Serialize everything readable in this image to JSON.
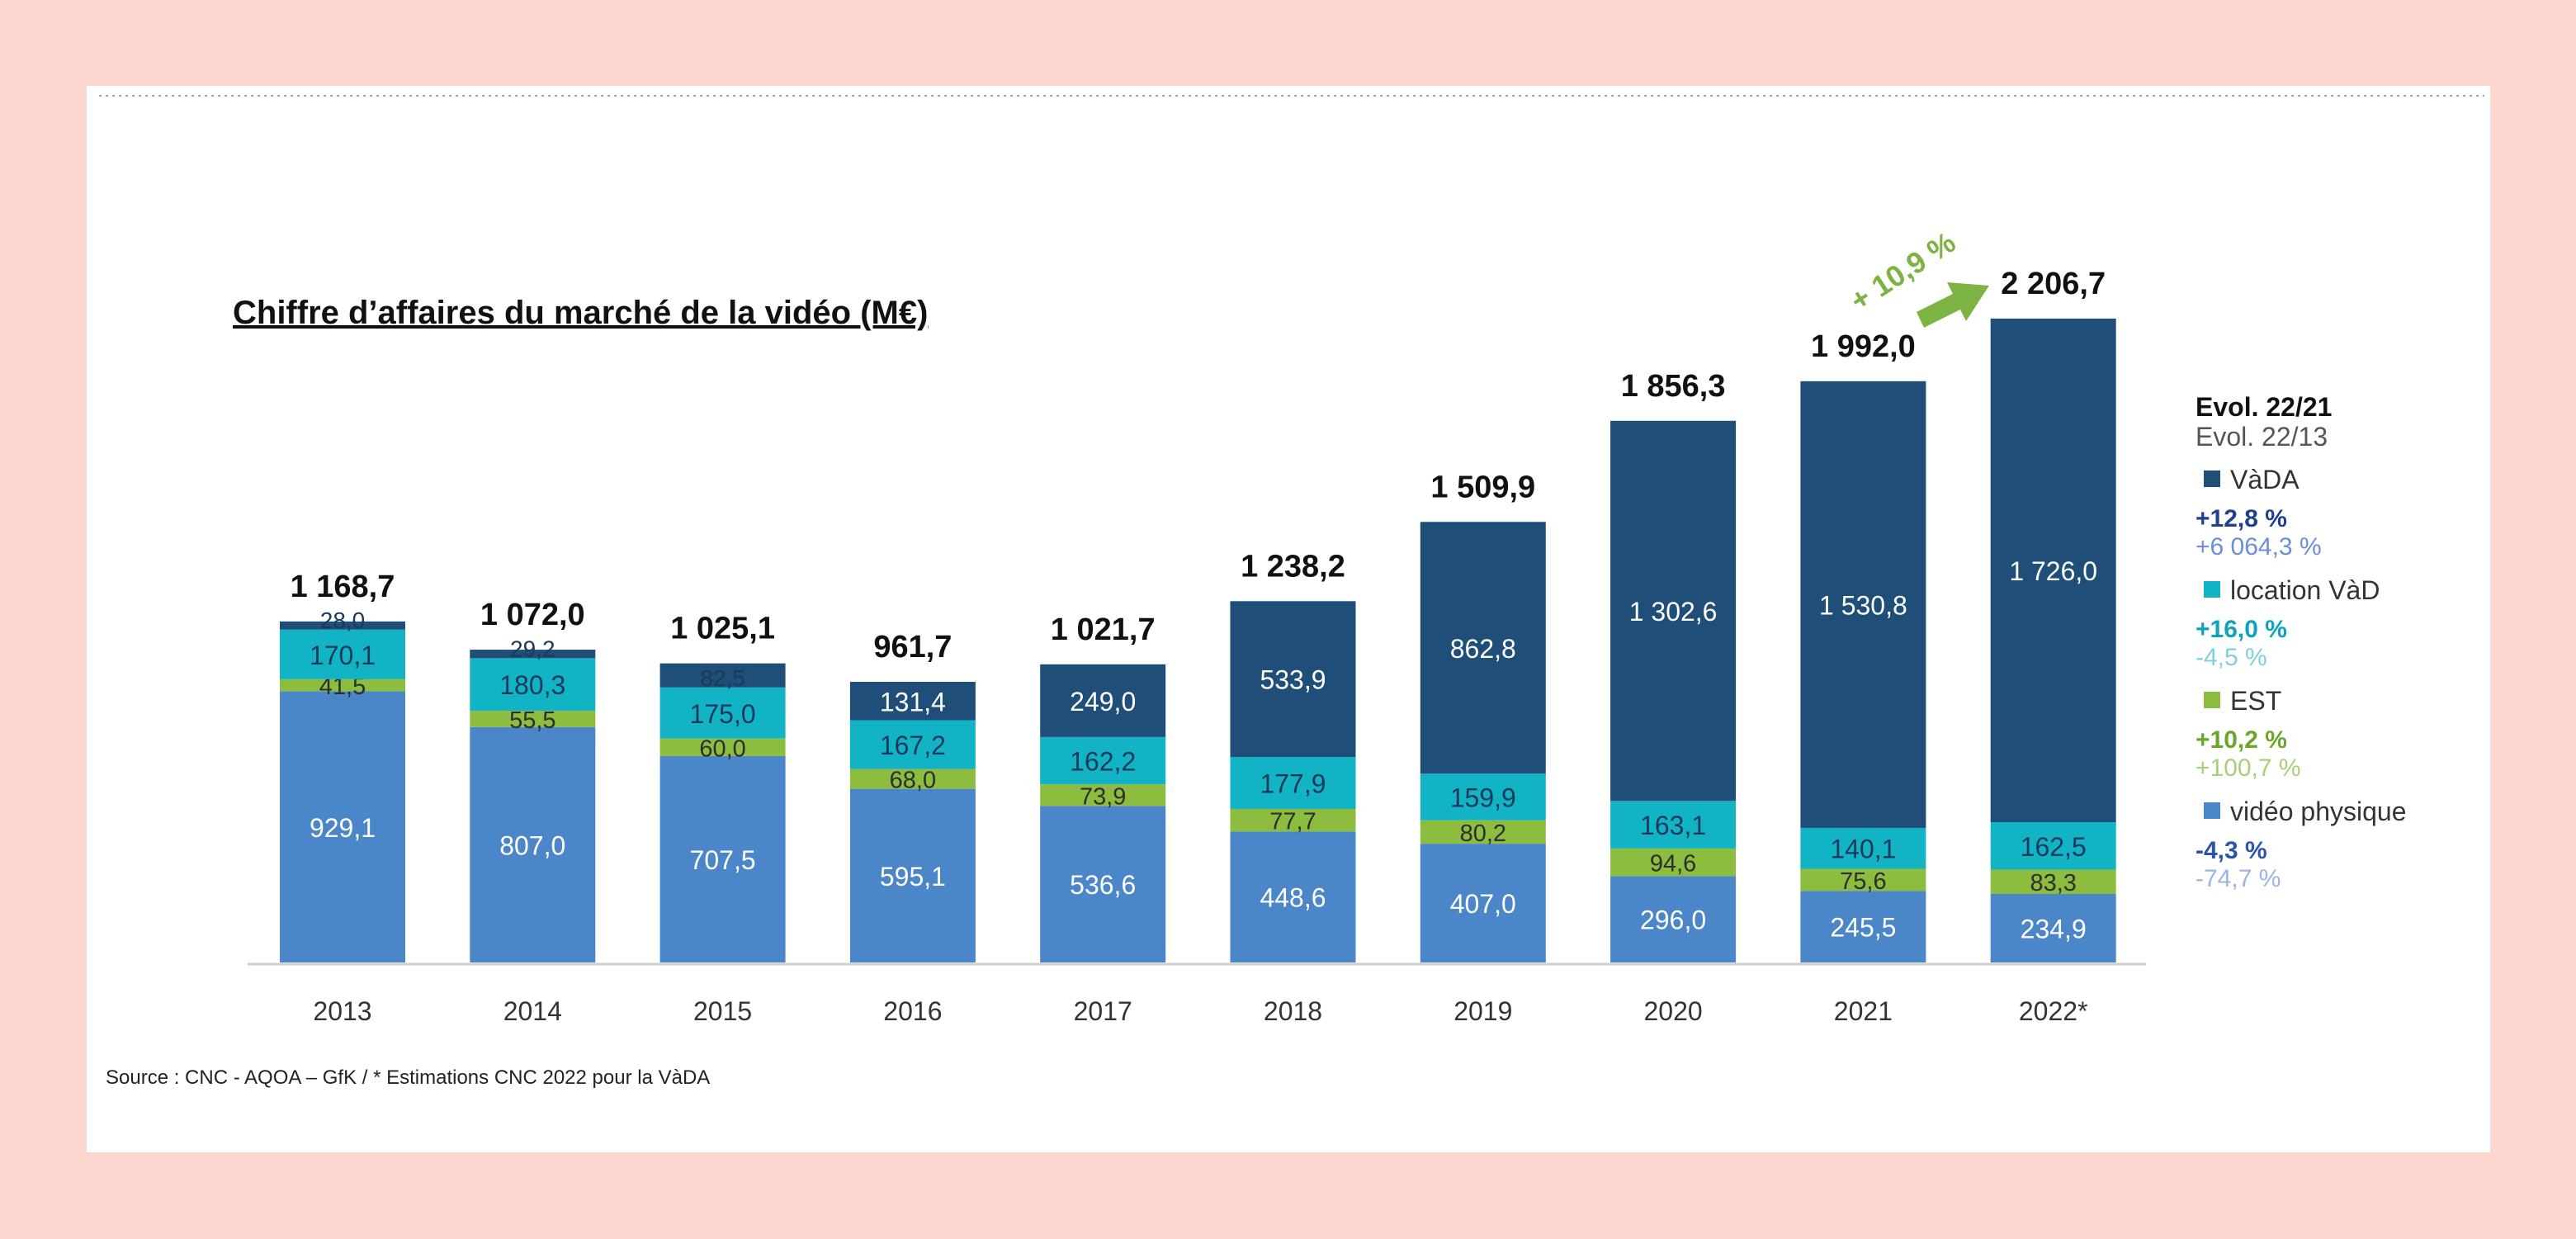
{
  "colors": {
    "background": "#fdd6cf",
    "panel": "#ffffff",
    "vada": "#1f4e79",
    "location_vad": "#13b3c6",
    "est": "#8cbd3f",
    "video_physique": "#4a86c8",
    "growth_arrow": "#7cb342"
  },
  "chart_data": {
    "type": "bar",
    "stacked": true,
    "title": "Chiffre d’affaires du marché de la vidéo (M€)",
    "categories": [
      "2013",
      "2014",
      "2015",
      "2016",
      "2017",
      "2018",
      "2019",
      "2020",
      "2021",
      "2022*"
    ],
    "series": [
      {
        "name": "vidéo physique",
        "color": "#4a86c8",
        "values": [
          929.1,
          807.0,
          707.5,
          595.1,
          536.6,
          448.6,
          407.0,
          296.0,
          245.5,
          234.9
        ],
        "labels": [
          "929,1",
          "807,0",
          "707,5",
          "595,1",
          "536,6",
          "448,6",
          "407,0",
          "296,0",
          "245,5",
          "234,9"
        ]
      },
      {
        "name": "EST",
        "color": "#8cbd3f",
        "values": [
          41.5,
          55.5,
          60.0,
          68.0,
          73.9,
          77.7,
          80.2,
          94.6,
          75.6,
          83.3
        ],
        "labels": [
          "41,5",
          "55,5",
          "60,0",
          "68,0",
          "73,9",
          "77,7",
          "80,2",
          "94,6",
          "75,6",
          "83,3"
        ]
      },
      {
        "name": "location VàD",
        "color": "#13b3c6",
        "values": [
          170.1,
          180.3,
          175.0,
          167.2,
          162.2,
          177.9,
          159.9,
          163.1,
          140.1,
          162.5
        ],
        "labels": [
          "170,1",
          "180,3",
          "175,0",
          "167,2",
          "162,2",
          "177,9",
          "159,9",
          "163,1",
          "140,1",
          "162,5"
        ]
      },
      {
        "name": "VàDA",
        "color": "#1f4e79",
        "values": [
          28.0,
          29.2,
          82.5,
          131.4,
          249.0,
          533.9,
          862.8,
          1302.6,
          1530.8,
          1726.0
        ],
        "labels": [
          "28,0",
          "29,2",
          "82,5",
          "131,4",
          "249,0",
          "533,9",
          "862,8",
          "1 302,6",
          "1 530,8",
          "1 726,0"
        ]
      }
    ],
    "totals": [
      1168.7,
      1072.0,
      1025.1,
      961.7,
      1021.7,
      1238.2,
      1509.9,
      1856.3,
      1992.0,
      2206.7
    ],
    "total_labels": [
      "1 168,7",
      "1 072,0",
      "1 025,1",
      "961,7",
      "1 021,7",
      "1 238,2",
      "1 509,9",
      "1 856,3",
      "1 992,0",
      "2 206,7"
    ],
    "growth_annotation": "+ 10,9 %",
    "legend": {
      "placement": "right",
      "header1": "Evol. 22/21",
      "header2": "Evol. 22/13",
      "items": [
        {
          "name": "VàDA",
          "evol1": "+12,8 %",
          "evol2": "+6 064,3 %",
          "color": "#1f4e79",
          "c1": "#1f3f8f",
          "c2": "#6a8fd8"
        },
        {
          "name": "location VàD",
          "evol1": "+16,0 %",
          "evol2": "-4,5 %",
          "color": "#13b3c6",
          "c1": "#0fa2bd",
          "c2": "#7fd0de"
        },
        {
          "name": "EST",
          "evol1": "+10,2 %",
          "evol2": "+100,7 %",
          "color": "#8cbd3f",
          "c1": "#6aa62a",
          "c2": "#a9cf7a"
        },
        {
          "name": "vidéo physique",
          "evol1": "-4,3 %",
          "evol2": "-74,7 %",
          "color": "#4a86c8",
          "c1": "#2b55a8",
          "c2": "#9ab4e4"
        }
      ]
    },
    "source": "Source : CNC - AQOA – GfK / * Estimations CNC 2022 pour la VàDA",
    "ylim": [
      0,
      2300
    ],
    "grid": false
  }
}
